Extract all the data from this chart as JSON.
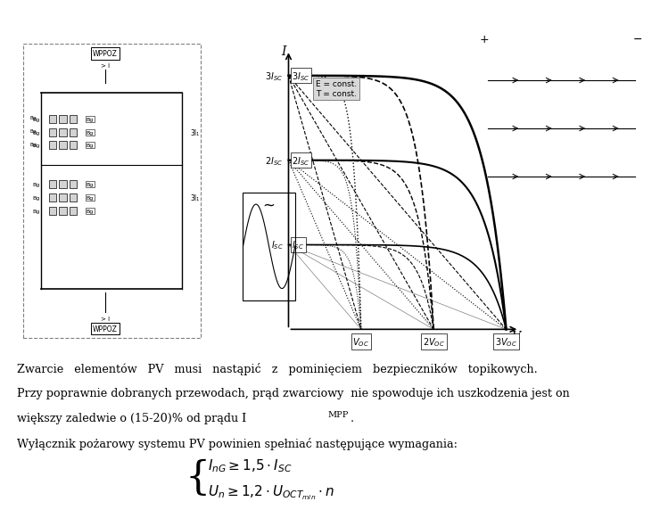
{
  "background_color": "#ffffff",
  "text_line1": "Zwarcie   elementów   PV   musi   nastąpić   z   pominięciem   bezpieczników   topikowych.",
  "text_line2": "Przy poprawnie dobranych przewodach, prąd zwarciowy  nie spowoduje ich uszkodzenia jest on",
  "text_line3": "większy zaledwie o (15-20)% od prądu I",
  "text_line3_sub": "MPP",
  "text_line3_end": ".",
  "text_line4": "Wyłącznik pożarowy systemu PV powinien spełniać następujące wymagania:",
  "eq1": "$I_{nG} \\geq 1{,}5 \\cdot I_{SC}$",
  "eq2": "$U_{n} \\geq 1{,}2 \\cdot U_{OCT_{min}} \\cdot n$",
  "fig_bg": "#f0f0f0",
  "text_fontsize": 11.5,
  "eq_fontsize": 13
}
